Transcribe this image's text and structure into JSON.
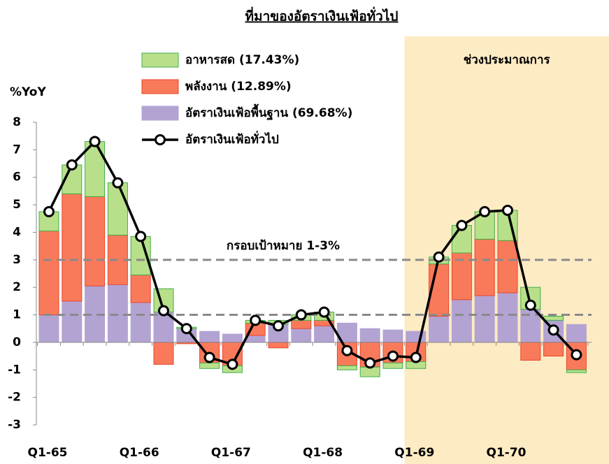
{
  "chart_data": {
    "type": "stacked_bar_line",
    "title": "ที่มาของอัตราเงินเฟ้อทั่วไป",
    "y_label": "%YoY",
    "categories": [
      "Q1-65",
      null,
      null,
      null,
      "Q1-66",
      null,
      null,
      null,
      "Q1-67",
      null,
      null,
      null,
      "Q1-68",
      null,
      null,
      null,
      "Q1-69",
      null,
      null,
      null,
      "Q1-70",
      null,
      null,
      null
    ],
    "series": [
      {
        "name": "อาหารสด (17.43%)",
        "color": "#b8e08a",
        "border": "#3fae49",
        "kind": "bar",
        "values": [
          0.7,
          1.05,
          2.0,
          1.9,
          1.4,
          0.85,
          0.05,
          -0.2,
          -0.25,
          0.1,
          0.15,
          0.2,
          0.3,
          -0.15,
          -0.35,
          -0.2,
          -0.25,
          0.25,
          1.0,
          1.0,
          1.1,
          0.8,
          0.15,
          -0.1
        ]
      },
      {
        "name": "พลังงาน (12.89%)",
        "color": "#f97a5a",
        "border": "#e8452a",
        "kind": "bar",
        "values": [
          3.05,
          3.9,
          3.25,
          1.8,
          1.0,
          -0.8,
          -0.05,
          -0.75,
          -0.85,
          0.45,
          -0.2,
          0.3,
          0.2,
          -0.85,
          -0.9,
          -0.75,
          -0.7,
          1.9,
          1.7,
          2.05,
          1.9,
          -0.65,
          -0.5,
          -1.0
        ]
      },
      {
        "name": "อัตราเงินเฟ้อพื้นฐาน (69.68%)",
        "color": "#b3a3d3",
        "border": "#b3a3d3",
        "kind": "bar",
        "values": [
          1.0,
          1.5,
          2.05,
          2.1,
          1.45,
          1.1,
          0.5,
          0.4,
          0.3,
          0.25,
          0.65,
          0.5,
          0.6,
          0.7,
          0.5,
          0.45,
          0.4,
          0.95,
          1.55,
          1.7,
          1.8,
          1.2,
          0.8,
          0.65
        ]
      },
      {
        "name": "อัตราเงินเฟ้อทั่วไป",
        "color": "#000000",
        "kind": "line",
        "values": [
          4.75,
          6.45,
          7.3,
          5.8,
          3.85,
          1.15,
          0.5,
          -0.55,
          -0.8,
          0.8,
          0.6,
          1.0,
          1.1,
          -0.3,
          -0.75,
          -0.5,
          -0.55,
          3.1,
          4.25,
          4.75,
          4.8,
          1.35,
          0.45,
          -0.45
        ]
      }
    ],
    "ylim": [
      -3,
      8
    ],
    "yticks": [
      -3,
      -2,
      -1,
      0,
      1,
      2,
      3,
      4,
      5,
      6,
      7,
      8
    ],
    "target": {
      "label": "กรอบเป้าหมาย 1-3%",
      "lines": [
        1,
        3
      ]
    },
    "forecast": {
      "label": "ช่วงประมาณการ",
      "from_index": 16
    }
  }
}
